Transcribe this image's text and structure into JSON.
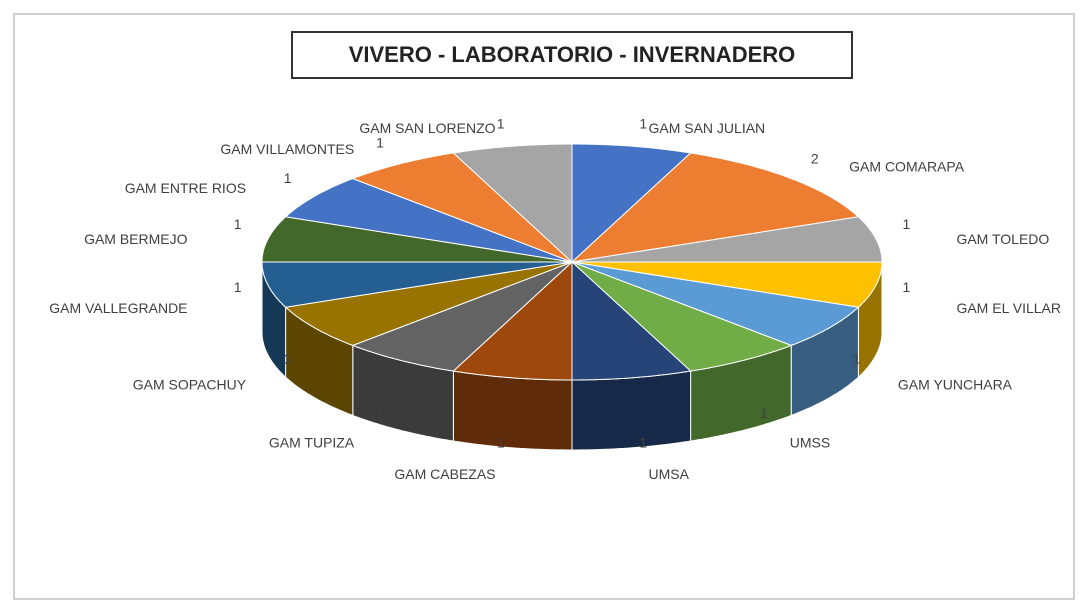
{
  "chart_data": {
    "type": "pie3d",
    "title": "VIVERO - LABORATORIO - INVERNADERO",
    "categories": [
      "GAM SAN JULIAN",
      "GAM COMARAPA",
      "GAM TOLEDO",
      "GAM EL VILLAR",
      "GAM YUNCHARA",
      "UMSS",
      "UMSA",
      "GAM CABEZAS",
      "GAM TUPIZA",
      "GAM SOPACHUY",
      "GAM VALLEGRANDE",
      "GAM BERMEJO",
      "GAM ENTRE RIOS",
      "GAM VILLAMONTES",
      "GAM SAN LORENZO"
    ],
    "values": [
      1,
      2,
      1,
      1,
      1,
      1,
      1,
      1,
      1,
      1,
      1,
      1,
      1,
      1,
      1
    ],
    "colors": [
      "#4472c4",
      "#ed7d31",
      "#a5a5a5",
      "#ffc000",
      "#5b9bd5",
      "#70ad47",
      "#264478",
      "#9e480e",
      "#636363",
      "#997300",
      "#255e91",
      "#43682b",
      "#4472c4",
      "#ed7d31",
      "#a5a5a5"
    ]
  }
}
